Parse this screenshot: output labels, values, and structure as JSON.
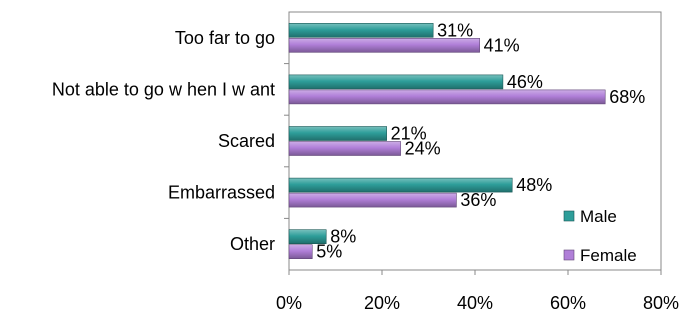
{
  "chart_data": {
    "type": "bar",
    "orientation": "horizontal",
    "categories": [
      "Too far to go",
      "Not able to go w hen I w ant",
      "Scared",
      "Embarrassed",
      "Other"
    ],
    "series": [
      {
        "name": "Male",
        "color": "#2e9e9a",
        "values": [
          31,
          46,
          21,
          48,
          8
        ],
        "labels": [
          "31%",
          "46%",
          "21%",
          "48%",
          "8%"
        ]
      },
      {
        "name": "Female",
        "color": "#b07fd8",
        "values": [
          41,
          68,
          24,
          36,
          5
        ],
        "labels": [
          "41%",
          "68%",
          "24%",
          "36%",
          "5%"
        ]
      }
    ],
    "xlim": [
      0,
      80
    ],
    "xticks": [
      0,
      20,
      40,
      60,
      80
    ],
    "xtick_labels": [
      "0%",
      "20%",
      "40%",
      "60%",
      "80%"
    ],
    "grid": false,
    "legend_position": "bottom-right"
  }
}
